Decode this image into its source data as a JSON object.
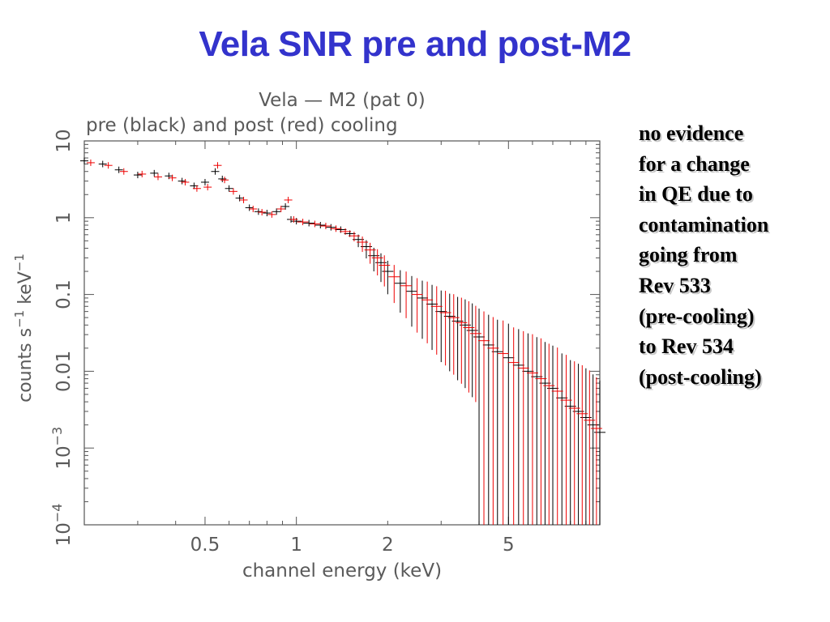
{
  "slide": {
    "title": "Vela SNR pre and post-M2",
    "title_color": "#3333cc"
  },
  "note": {
    "lines": [
      "no evidence",
      "for a change",
      "in QE due to",
      "contamination",
      "going from",
      "Rev 533",
      "(pre-cooling)",
      "to Rev 534",
      "(post-cooling)"
    ]
  },
  "chart_data": {
    "type": "scatter",
    "title": "Vela — M2 (pat 0)",
    "subtitle": "pre (black) and post (red) cooling",
    "xlabel": "channel energy (keV)",
    "ylabel": "counts s^-1 keV^-1",
    "x_scale": "log",
    "y_scale": "log",
    "xlim": [
      0.2,
      10
    ],
    "ylim": [
      0.0001,
      10
    ],
    "x_ticks": [
      0.5,
      1,
      2,
      5
    ],
    "x_tick_labels": [
      "0.5",
      "1",
      "2",
      "5"
    ],
    "y_ticks": [
      0.0001,
      0.001,
      0.01,
      0.1,
      1,
      10
    ],
    "y_tick_labels": [
      {
        "base": "10",
        "exp": "−4"
      },
      {
        "base": "10",
        "exp": "−3"
      },
      {
        "base": "0.01",
        "exp": ""
      },
      {
        "base": "0.1",
        "exp": ""
      },
      {
        "base": "1",
        "exp": ""
      },
      {
        "base": "10",
        "exp": ""
      }
    ],
    "series": [
      {
        "name": "pre",
        "color": "#000000",
        "x": [
          0.2,
          0.23,
          0.26,
          0.3,
          0.34,
          0.38,
          0.42,
          0.46,
          0.5,
          0.54,
          0.57,
          0.6,
          0.65,
          0.7,
          0.75,
          0.8,
          0.86,
          0.92,
          0.96,
          1.0,
          1.1,
          1.2,
          1.3,
          1.4,
          1.5,
          1.6,
          1.7,
          1.8,
          1.9,
          2.0,
          2.2,
          2.4,
          2.6,
          2.8,
          3.0,
          3.2,
          3.4,
          3.6,
          3.8,
          4.0,
          4.3,
          4.6,
          5.0,
          5.4,
          5.8,
          6.2,
          6.6,
          7.0,
          7.5,
          8.0,
          8.5,
          9.0,
          9.5,
          10.0
        ],
        "y": [
          5.5,
          5.0,
          4.2,
          3.6,
          3.8,
          3.5,
          3.0,
          2.6,
          2.9,
          4.0,
          3.2,
          2.4,
          1.8,
          1.35,
          1.2,
          1.15,
          1.2,
          1.4,
          0.95,
          0.9,
          0.85,
          0.8,
          0.75,
          0.7,
          0.62,
          0.52,
          0.42,
          0.32,
          0.26,
          0.2,
          0.14,
          0.11,
          0.09,
          0.075,
          0.06,
          0.052,
          0.045,
          0.04,
          0.034,
          0.028,
          0.022,
          0.018,
          0.015,
          0.012,
          0.01,
          0.0085,
          0.007,
          0.006,
          0.0045,
          0.0035,
          0.003,
          0.0025,
          0.002,
          0.0016
        ]
      },
      {
        "name": "post",
        "color": "#ee0000",
        "x": [
          0.21,
          0.24,
          0.27,
          0.31,
          0.35,
          0.39,
          0.43,
          0.47,
          0.51,
          0.55,
          0.58,
          0.62,
          0.67,
          0.72,
          0.77,
          0.83,
          0.89,
          0.94,
          0.98,
          1.05,
          1.15,
          1.25,
          1.35,
          1.45,
          1.55,
          1.65,
          1.75,
          1.85,
          1.95,
          2.1,
          2.3,
          2.5,
          2.7,
          2.9,
          3.1,
          3.3,
          3.5,
          3.7,
          3.9,
          4.15,
          4.45,
          4.8,
          5.2,
          5.6,
          6.0,
          6.4,
          6.8,
          7.25,
          7.75,
          8.25,
          8.75,
          9.25,
          9.75
        ],
        "y": [
          5.2,
          4.8,
          4.0,
          3.7,
          3.4,
          3.3,
          2.9,
          2.4,
          2.5,
          4.8,
          3.1,
          2.2,
          1.7,
          1.3,
          1.18,
          1.1,
          1.3,
          1.7,
          0.95,
          0.88,
          0.83,
          0.78,
          0.72,
          0.66,
          0.58,
          0.48,
          0.38,
          0.3,
          0.24,
          0.17,
          0.13,
          0.1,
          0.085,
          0.07,
          0.058,
          0.05,
          0.043,
          0.037,
          0.031,
          0.025,
          0.02,
          0.017,
          0.013,
          0.011,
          0.0095,
          0.008,
          0.0065,
          0.0055,
          0.0042,
          0.0033,
          0.0028,
          0.0023,
          0.0018
        ]
      }
    ],
    "grid": false,
    "legend": "none"
  }
}
